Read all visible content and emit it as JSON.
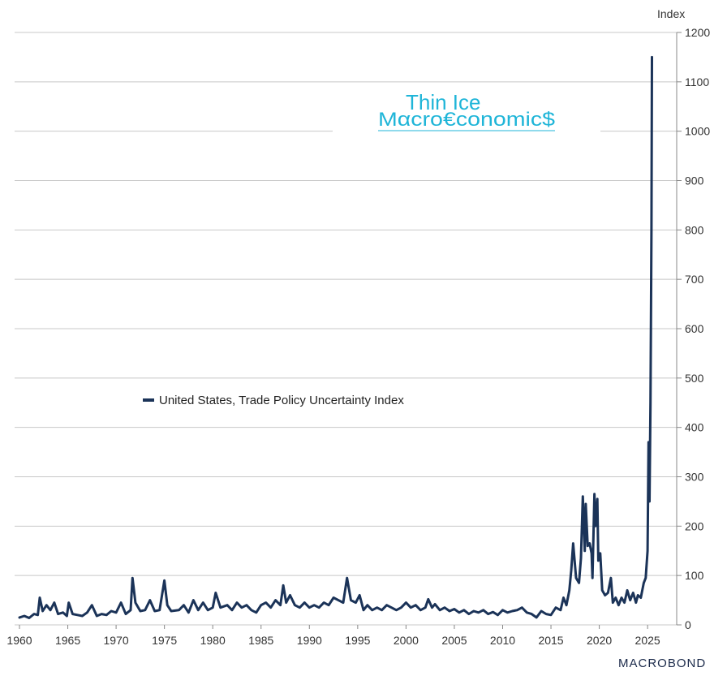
{
  "chart_data": {
    "type": "line",
    "ylabel": "Index",
    "ylim": [
      0,
      1200
    ],
    "yticks": [
      0,
      100,
      200,
      300,
      400,
      500,
      600,
      700,
      800,
      900,
      1000,
      1100,
      1200
    ],
    "xlim": [
      1960,
      2026.5
    ],
    "xticks": [
      1960,
      1965,
      1970,
      1975,
      1980,
      1985,
      1990,
      1995,
      2000,
      2005,
      2010,
      2015,
      2020,
      2025
    ],
    "grid": true,
    "legend_position": "center-left",
    "series": [
      {
        "name": "United States, Trade Policy Uncertainty Index",
        "color": "#1b3358",
        "points": [
          [
            1960.0,
            15
          ],
          [
            1960.5,
            18
          ],
          [
            1961.0,
            14
          ],
          [
            1961.5,
            22
          ],
          [
            1961.9,
            20
          ],
          [
            1962.1,
            55
          ],
          [
            1962.4,
            28
          ],
          [
            1962.8,
            40
          ],
          [
            1963.2,
            30
          ],
          [
            1963.6,
            45
          ],
          [
            1964.0,
            22
          ],
          [
            1964.5,
            25
          ],
          [
            1964.9,
            18
          ],
          [
            1965.1,
            45
          ],
          [
            1965.5,
            22
          ],
          [
            1966.0,
            20
          ],
          [
            1966.5,
            18
          ],
          [
            1967.0,
            25
          ],
          [
            1967.5,
            40
          ],
          [
            1968.0,
            18
          ],
          [
            1968.5,
            22
          ],
          [
            1969.0,
            20
          ],
          [
            1969.5,
            28
          ],
          [
            1970.0,
            25
          ],
          [
            1970.5,
            45
          ],
          [
            1971.0,
            22
          ],
          [
            1971.5,
            30
          ],
          [
            1971.7,
            95
          ],
          [
            1972.0,
            45
          ],
          [
            1972.5,
            28
          ],
          [
            1973.0,
            30
          ],
          [
            1973.5,
            50
          ],
          [
            1974.0,
            28
          ],
          [
            1974.5,
            30
          ],
          [
            1975.0,
            90
          ],
          [
            1975.3,
            40
          ],
          [
            1975.7,
            28
          ],
          [
            1976.5,
            30
          ],
          [
            1977.0,
            40
          ],
          [
            1977.5,
            25
          ],
          [
            1978.0,
            50
          ],
          [
            1978.5,
            30
          ],
          [
            1979.0,
            45
          ],
          [
            1979.5,
            30
          ],
          [
            1980.0,
            35
          ],
          [
            1980.3,
            65
          ],
          [
            1980.8,
            35
          ],
          [
            1981.5,
            40
          ],
          [
            1982.0,
            30
          ],
          [
            1982.5,
            45
          ],
          [
            1983.0,
            35
          ],
          [
            1983.5,
            40
          ],
          [
            1984.0,
            30
          ],
          [
            1984.5,
            25
          ],
          [
            1985.0,
            40
          ],
          [
            1985.5,
            45
          ],
          [
            1986.0,
            35
          ],
          [
            1986.5,
            50
          ],
          [
            1987.0,
            40
          ],
          [
            1987.3,
            80
          ],
          [
            1987.6,
            45
          ],
          [
            1988.0,
            60
          ],
          [
            1988.5,
            40
          ],
          [
            1989.0,
            35
          ],
          [
            1989.5,
            45
          ],
          [
            1990.0,
            35
          ],
          [
            1990.5,
            40
          ],
          [
            1991.0,
            35
          ],
          [
            1991.5,
            45
          ],
          [
            1992.0,
            40
          ],
          [
            1992.5,
            55
          ],
          [
            1993.0,
            50
          ],
          [
            1993.5,
            45
          ],
          [
            1993.9,
            95
          ],
          [
            1994.3,
            50
          ],
          [
            1994.8,
            45
          ],
          [
            1995.2,
            60
          ],
          [
            1995.6,
            30
          ],
          [
            1996.0,
            40
          ],
          [
            1996.5,
            30
          ],
          [
            1997.0,
            35
          ],
          [
            1997.5,
            30
          ],
          [
            1998.0,
            40
          ],
          [
            1998.5,
            35
          ],
          [
            1999.0,
            30
          ],
          [
            1999.5,
            35
          ],
          [
            2000.0,
            45
          ],
          [
            2000.5,
            35
          ],
          [
            2001.0,
            40
          ],
          [
            2001.5,
            30
          ],
          [
            2002.0,
            35
          ],
          [
            2002.3,
            52
          ],
          [
            2002.7,
            35
          ],
          [
            2003.0,
            42
          ],
          [
            2003.5,
            30
          ],
          [
            2004.0,
            35
          ],
          [
            2004.5,
            28
          ],
          [
            2005.0,
            32
          ],
          [
            2005.5,
            25
          ],
          [
            2006.0,
            30
          ],
          [
            2006.5,
            22
          ],
          [
            2007.0,
            28
          ],
          [
            2007.5,
            25
          ],
          [
            2008.0,
            30
          ],
          [
            2008.5,
            22
          ],
          [
            2009.0,
            26
          ],
          [
            2009.5,
            20
          ],
          [
            2010.0,
            30
          ],
          [
            2010.5,
            25
          ],
          [
            2011.0,
            28
          ],
          [
            2011.5,
            30
          ],
          [
            2012.0,
            35
          ],
          [
            2012.5,
            25
          ],
          [
            2013.0,
            22
          ],
          [
            2013.5,
            15
          ],
          [
            2014.0,
            28
          ],
          [
            2014.5,
            22
          ],
          [
            2015.0,
            20
          ],
          [
            2015.5,
            35
          ],
          [
            2016.0,
            30
          ],
          [
            2016.3,
            55
          ],
          [
            2016.6,
            40
          ],
          [
            2016.9,
            70
          ],
          [
            2017.1,
            110
          ],
          [
            2017.3,
            165
          ],
          [
            2017.6,
            95
          ],
          [
            2017.9,
            85
          ],
          [
            2018.1,
            135
          ],
          [
            2018.3,
            260
          ],
          [
            2018.5,
            150
          ],
          [
            2018.6,
            245
          ],
          [
            2018.8,
            160
          ],
          [
            2019.0,
            165
          ],
          [
            2019.2,
            145
          ],
          [
            2019.3,
            95
          ],
          [
            2019.5,
            265
          ],
          [
            2019.6,
            200
          ],
          [
            2019.8,
            255
          ],
          [
            2019.9,
            130
          ],
          [
            2020.1,
            145
          ],
          [
            2020.3,
            70
          ],
          [
            2020.6,
            60
          ],
          [
            2020.9,
            65
          ],
          [
            2021.2,
            95
          ],
          [
            2021.4,
            45
          ],
          [
            2021.7,
            55
          ],
          [
            2022.0,
            40
          ],
          [
            2022.3,
            55
          ],
          [
            2022.6,
            45
          ],
          [
            2022.9,
            70
          ],
          [
            2023.2,
            50
          ],
          [
            2023.5,
            65
          ],
          [
            2023.8,
            45
          ],
          [
            2024.0,
            60
          ],
          [
            2024.3,
            55
          ],
          [
            2024.6,
            85
          ],
          [
            2024.8,
            95
          ],
          [
            2025.0,
            150
          ],
          [
            2025.1,
            370
          ],
          [
            2025.2,
            250
          ],
          [
            2025.3,
            450
          ],
          [
            2025.4,
            800
          ],
          [
            2025.45,
            1150
          ]
        ]
      }
    ]
  },
  "brand": {
    "line1": "Thin Ice",
    "line2": "Mαcro€conomic$"
  },
  "footer_logo": "MACROBOND"
}
